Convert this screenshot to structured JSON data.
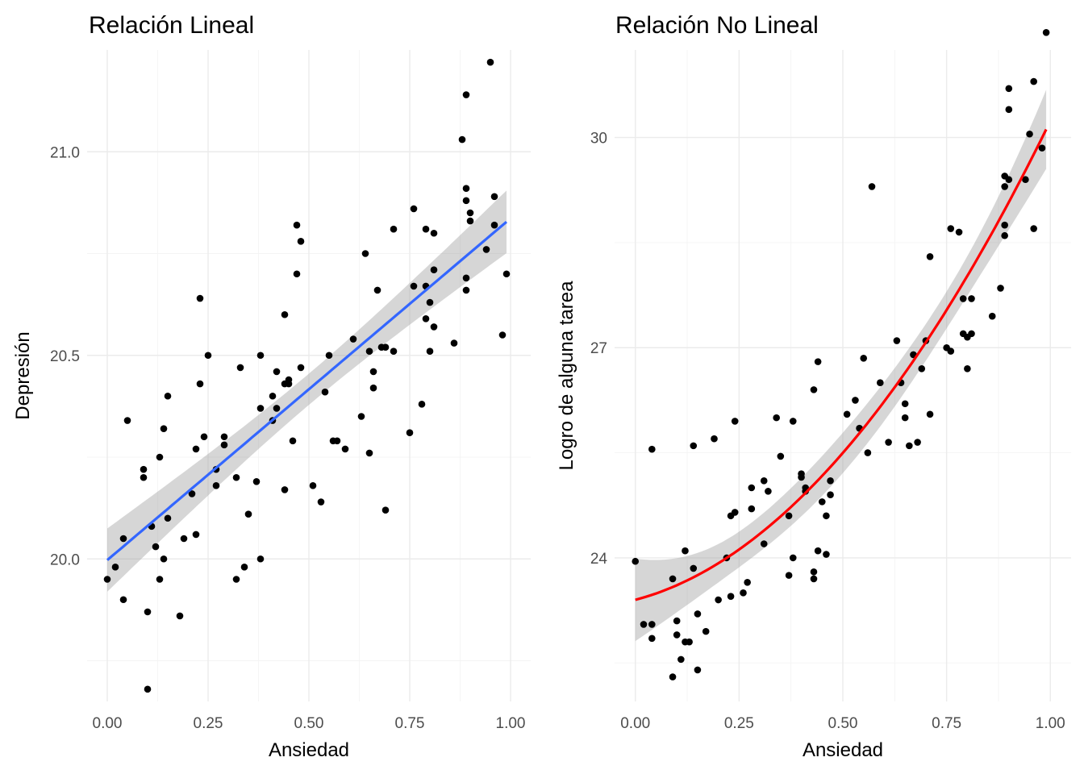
{
  "chart_data": [
    {
      "type": "scatter",
      "title": "Relación Lineal",
      "xlabel": "Ansiedad",
      "ylabel": "Depresión",
      "xlim": [
        -0.05,
        1.05
      ],
      "ylim": [
        19.65,
        21.25
      ],
      "x_ticks": [
        0.0,
        0.25,
        0.5,
        0.75,
        1.0
      ],
      "x_tick_labels": [
        "0.00",
        "0.25",
        "0.50",
        "0.75",
        "1.00"
      ],
      "y_ticks": [
        20.0,
        20.5,
        21.0
      ],
      "y_tick_labels": [
        "20.0",
        "20.5",
        "21.0"
      ],
      "y_minor": [
        19.75,
        20.25,
        20.75
      ],
      "grid": true,
      "fit": {
        "method": "linear",
        "color": "#3366FF",
        "se_band": true
      },
      "points": [
        [
          0.0,
          19.95
        ],
        [
          0.02,
          19.98
        ],
        [
          0.04,
          20.05
        ],
        [
          0.04,
          19.9
        ],
        [
          0.05,
          20.34
        ],
        [
          0.09,
          20.22
        ],
        [
          0.09,
          20.2
        ],
        [
          0.1,
          19.87
        ],
        [
          0.1,
          19.68
        ],
        [
          0.11,
          20.08
        ],
        [
          0.12,
          20.03
        ],
        [
          0.13,
          19.95
        ],
        [
          0.13,
          20.25
        ],
        [
          0.14,
          20.0
        ],
        [
          0.14,
          20.32
        ],
        [
          0.15,
          20.1
        ],
        [
          0.15,
          20.4
        ],
        [
          0.18,
          19.86
        ],
        [
          0.19,
          20.05
        ],
        [
          0.21,
          20.16
        ],
        [
          0.22,
          20.27
        ],
        [
          0.22,
          20.06
        ],
        [
          0.23,
          20.43
        ],
        [
          0.23,
          20.64
        ],
        [
          0.24,
          20.3
        ],
        [
          0.25,
          20.5
        ],
        [
          0.27,
          20.18
        ],
        [
          0.27,
          20.22
        ],
        [
          0.29,
          20.28
        ],
        [
          0.29,
          20.3
        ],
        [
          0.32,
          19.95
        ],
        [
          0.32,
          20.2
        ],
        [
          0.33,
          20.47
        ],
        [
          0.34,
          19.98
        ],
        [
          0.35,
          20.11
        ],
        [
          0.37,
          20.19
        ],
        [
          0.38,
          20.5
        ],
        [
          0.38,
          20.37
        ],
        [
          0.38,
          20.0
        ],
        [
          0.41,
          20.34
        ],
        [
          0.41,
          20.4
        ],
        [
          0.42,
          20.37
        ],
        [
          0.42,
          20.46
        ],
        [
          0.44,
          20.6
        ],
        [
          0.44,
          20.43
        ],
        [
          0.44,
          20.17
        ],
        [
          0.45,
          20.44
        ],
        [
          0.45,
          20.43
        ],
        [
          0.46,
          20.29
        ],
        [
          0.47,
          20.7
        ],
        [
          0.47,
          20.82
        ],
        [
          0.48,
          20.78
        ],
        [
          0.48,
          20.47
        ],
        [
          0.51,
          20.18
        ],
        [
          0.53,
          20.14
        ],
        [
          0.54,
          20.41
        ],
        [
          0.55,
          20.5
        ],
        [
          0.56,
          20.29
        ],
        [
          0.57,
          20.29
        ],
        [
          0.59,
          20.27
        ],
        [
          0.61,
          20.54
        ],
        [
          0.63,
          20.35
        ],
        [
          0.64,
          20.75
        ],
        [
          0.65,
          20.51
        ],
        [
          0.65,
          20.26
        ],
        [
          0.66,
          20.42
        ],
        [
          0.66,
          20.46
        ],
        [
          0.67,
          20.66
        ],
        [
          0.68,
          20.52
        ],
        [
          0.69,
          20.52
        ],
        [
          0.69,
          20.12
        ],
        [
          0.71,
          20.51
        ],
        [
          0.71,
          20.81
        ],
        [
          0.75,
          20.31
        ],
        [
          0.76,
          20.67
        ],
        [
          0.76,
          20.86
        ],
        [
          0.78,
          20.38
        ],
        [
          0.79,
          20.67
        ],
        [
          0.79,
          20.59
        ],
        [
          0.79,
          20.81
        ],
        [
          0.8,
          20.51
        ],
        [
          0.8,
          20.63
        ],
        [
          0.81,
          20.71
        ],
        [
          0.81,
          20.8
        ],
        [
          0.81,
          20.57
        ],
        [
          0.86,
          20.53
        ],
        [
          0.88,
          21.03
        ],
        [
          0.89,
          21.14
        ],
        [
          0.89,
          20.66
        ],
        [
          0.89,
          20.88
        ],
        [
          0.89,
          20.69
        ],
        [
          0.89,
          20.91
        ],
        [
          0.9,
          20.85
        ],
        [
          0.9,
          20.83
        ],
        [
          0.94,
          20.76
        ],
        [
          0.95,
          21.22
        ],
        [
          0.96,
          20.89
        ],
        [
          0.96,
          20.82
        ],
        [
          0.98,
          20.55
        ],
        [
          0.99,
          20.7
        ]
      ]
    },
    {
      "type": "scatter",
      "title": "Relación No Lineal",
      "xlabel": "Ansiedad",
      "ylabel": "Logro de alguna tarea",
      "xlim": [
        -0.05,
        1.05
      ],
      "ylim": [
        21.95,
        31.25
      ],
      "x_ticks": [
        0.0,
        0.25,
        0.5,
        0.75,
        1.0
      ],
      "x_tick_labels": [
        "0.00",
        "0.25",
        "0.50",
        "0.75",
        "1.00"
      ],
      "y_ticks": [
        24,
        27,
        30
      ],
      "y_tick_labels": [
        "24",
        "27",
        "30"
      ],
      "y_minor": [
        22.5,
        25.5,
        28.5,
        31.5
      ],
      "grid": true,
      "fit": {
        "method": "quadratic",
        "color": "#FF0000",
        "se_band": true
      },
      "points": [
        [
          0.0,
          23.95
        ],
        [
          0.02,
          23.05
        ],
        [
          0.04,
          22.85
        ],
        [
          0.04,
          23.05
        ],
        [
          0.04,
          25.55
        ],
        [
          0.09,
          23.7
        ],
        [
          0.09,
          22.3
        ],
        [
          0.1,
          23.1
        ],
        [
          0.1,
          22.9
        ],
        [
          0.11,
          22.55
        ],
        [
          0.12,
          24.1
        ],
        [
          0.12,
          22.8
        ],
        [
          0.13,
          22.8
        ],
        [
          0.14,
          25.6
        ],
        [
          0.14,
          23.85
        ],
        [
          0.15,
          23.2
        ],
        [
          0.15,
          22.4
        ],
        [
          0.17,
          22.95
        ],
        [
          0.19,
          25.7
        ],
        [
          0.2,
          23.4
        ],
        [
          0.22,
          24.0
        ],
        [
          0.23,
          23.45
        ],
        [
          0.23,
          24.6
        ],
        [
          0.24,
          24.65
        ],
        [
          0.24,
          25.95
        ],
        [
          0.26,
          23.5
        ],
        [
          0.27,
          23.65
        ],
        [
          0.28,
          25.0
        ],
        [
          0.28,
          24.7
        ],
        [
          0.31,
          24.2
        ],
        [
          0.31,
          25.1
        ],
        [
          0.32,
          24.95
        ],
        [
          0.34,
          26.0
        ],
        [
          0.35,
          25.45
        ],
        [
          0.37,
          23.75
        ],
        [
          0.37,
          24.6
        ],
        [
          0.38,
          24.0
        ],
        [
          0.38,
          25.95
        ],
        [
          0.4,
          25.2
        ],
        [
          0.4,
          25.15
        ],
        [
          0.41,
          25.0
        ],
        [
          0.41,
          24.95
        ],
        [
          0.43,
          23.7
        ],
        [
          0.43,
          23.8
        ],
        [
          0.43,
          26.4
        ],
        [
          0.44,
          26.8
        ],
        [
          0.44,
          24.1
        ],
        [
          0.45,
          24.8
        ],
        [
          0.46,
          24.05
        ],
        [
          0.46,
          24.6
        ],
        [
          0.47,
          25.1
        ],
        [
          0.47,
          24.9
        ],
        [
          0.51,
          26.05
        ],
        [
          0.53,
          26.25
        ],
        [
          0.54,
          25.85
        ],
        [
          0.55,
          26.85
        ],
        [
          0.56,
          25.5
        ],
        [
          0.57,
          29.3
        ],
        [
          0.59,
          26.5
        ],
        [
          0.61,
          25.65
        ],
        [
          0.63,
          27.1
        ],
        [
          0.64,
          26.5
        ],
        [
          0.65,
          26.2
        ],
        [
          0.65,
          26.0
        ],
        [
          0.66,
          25.6
        ],
        [
          0.67,
          26.9
        ],
        [
          0.68,
          25.65
        ],
        [
          0.69,
          26.7
        ],
        [
          0.7,
          27.1
        ],
        [
          0.71,
          26.05
        ],
        [
          0.71,
          28.3
        ],
        [
          0.75,
          27.0
        ],
        [
          0.76,
          26.95
        ],
        [
          0.76,
          28.7
        ],
        [
          0.78,
          28.65
        ],
        [
          0.79,
          27.2
        ],
        [
          0.79,
          27.7
        ],
        [
          0.8,
          27.15
        ],
        [
          0.8,
          26.7
        ],
        [
          0.81,
          27.7
        ],
        [
          0.81,
          27.2
        ],
        [
          0.86,
          27.45
        ],
        [
          0.88,
          27.85
        ],
        [
          0.89,
          28.75
        ],
        [
          0.89,
          29.3
        ],
        [
          0.89,
          28.6
        ],
        [
          0.89,
          29.45
        ],
        [
          0.9,
          30.7
        ],
        [
          0.9,
          29.4
        ],
        [
          0.9,
          30.4
        ],
        [
          0.94,
          29.4
        ],
        [
          0.95,
          30.05
        ],
        [
          0.96,
          28.7
        ],
        [
          0.96,
          30.8
        ],
        [
          0.98,
          29.85
        ],
        [
          0.99,
          31.5
        ]
      ]
    }
  ]
}
